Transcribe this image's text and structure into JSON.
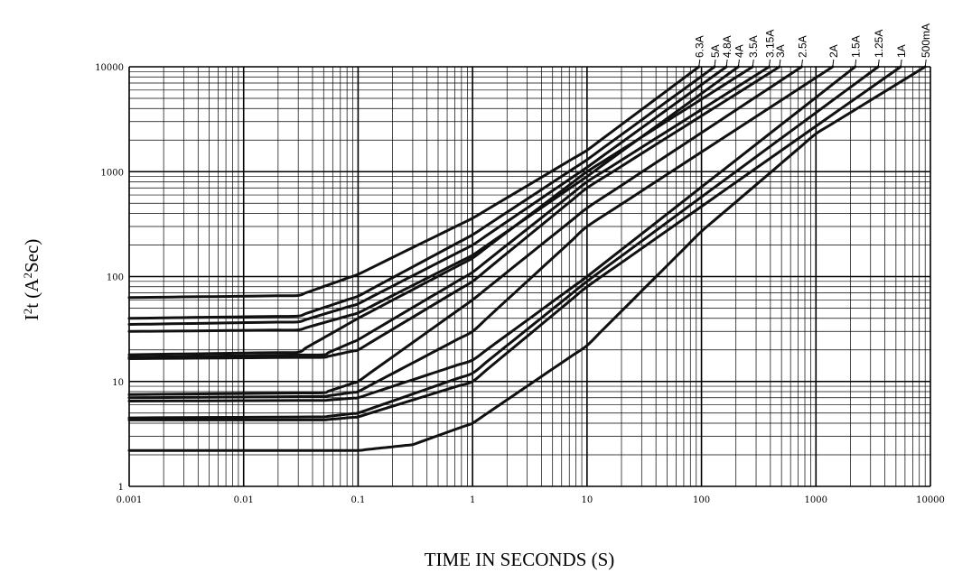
{
  "chart_data": {
    "type": "line",
    "x_scale": "log",
    "y_scale": "log",
    "xlim": [
      0.001,
      10000
    ],
    "ylim": [
      1,
      10000
    ],
    "grid": true,
    "xlabel": "TIME IN SECONDS  (S)",
    "ylabel_main": "I",
    "ylabel_sup1": "2",
    "ylabel_mid": "t (A",
    "ylabel_sup2": "2",
    "ylabel_end": "Sec)",
    "x_ticks": [
      {
        "value": 0.001,
        "label": "0.001"
      },
      {
        "value": 0.01,
        "label": "0.01"
      },
      {
        "value": 0.1,
        "label": "0.1"
      },
      {
        "value": 1,
        "label": "1"
      },
      {
        "value": 10,
        "label": "10"
      },
      {
        "value": 100,
        "label": "100"
      },
      {
        "value": 1000,
        "label": "1000"
      },
      {
        "value": 10000,
        "label": "10000"
      }
    ],
    "y_ticks": [
      {
        "value": 1,
        "label": "1"
      },
      {
        "value": 10,
        "label": "10"
      },
      {
        "value": 100,
        "label": "100"
      },
      {
        "value": 1000,
        "label": "1000"
      },
      {
        "value": 10000,
        "label": "10000"
      }
    ],
    "series": [
      {
        "name": "6.3A",
        "points": [
          [
            0.001,
            63
          ],
          [
            0.03,
            66
          ],
          [
            0.1,
            105
          ],
          [
            1,
            360
          ],
          [
            10,
            1600
          ],
          [
            95,
            10000
          ]
        ]
      },
      {
        "name": "5A",
        "points": [
          [
            0.001,
            40
          ],
          [
            0.03,
            42
          ],
          [
            0.1,
            65
          ],
          [
            1,
            250
          ],
          [
            10,
            1300
          ],
          [
            130,
            10000
          ]
        ]
      },
      {
        "name": "4.8A",
        "points": [
          [
            0.001,
            35
          ],
          [
            0.03,
            37
          ],
          [
            0.1,
            55
          ],
          [
            1,
            200
          ],
          [
            10,
            1100
          ],
          [
            165,
            10000
          ]
        ]
      },
      {
        "name": "4A",
        "points": [
          [
            0.001,
            30
          ],
          [
            0.03,
            31
          ],
          [
            0.1,
            45
          ],
          [
            1,
            160
          ],
          [
            10,
            900
          ],
          [
            210,
            10000
          ]
        ]
      },
      {
        "name": "3.5A",
        "points": [
          [
            0.001,
            18
          ],
          [
            0.03,
            19
          ],
          [
            0.1,
            40
          ],
          [
            1,
            150
          ],
          [
            10,
            1000
          ],
          [
            280,
            10000
          ]
        ]
      },
      {
        "name": "3.15A",
        "points": [
          [
            0.001,
            17
          ],
          [
            0.05,
            18
          ],
          [
            0.1,
            25
          ],
          [
            1,
            110
          ],
          [
            10,
            800
          ],
          [
            390,
            10000
          ]
        ]
      },
      {
        "name": "3A",
        "points": [
          [
            0.001,
            16.5
          ],
          [
            0.05,
            17
          ],
          [
            0.1,
            20
          ],
          [
            1,
            90
          ],
          [
            10,
            700
          ],
          [
            480,
            10000
          ]
        ]
      },
      {
        "name": "2.5A",
        "points": [
          [
            0.001,
            7.5
          ],
          [
            0.05,
            7.8
          ],
          [
            0.1,
            10
          ],
          [
            1,
            60
          ],
          [
            10,
            450
          ],
          [
            750,
            10000
          ]
        ]
      },
      {
        "name": "2A",
        "points": [
          [
            0.001,
            7
          ],
          [
            0.05,
            7.2
          ],
          [
            0.1,
            8
          ],
          [
            1,
            30
          ],
          [
            10,
            300
          ],
          [
            1400,
            10000
          ]
        ]
      },
      {
        "name": "1.5A",
        "points": [
          [
            0.001,
            6.5
          ],
          [
            0.05,
            6.6
          ],
          [
            0.1,
            7
          ],
          [
            1,
            16
          ],
          [
            10,
            100
          ],
          [
            2200,
            10000
          ]
        ]
      },
      {
        "name": "1.25A",
        "points": [
          [
            0.001,
            4.5
          ],
          [
            0.05,
            4.6
          ],
          [
            0.1,
            5
          ],
          [
            1,
            12
          ],
          [
            10,
            90
          ],
          [
            3500,
            10000
          ]
        ]
      },
      {
        "name": "1A",
        "points": [
          [
            0.001,
            4.3
          ],
          [
            0.05,
            4.3
          ],
          [
            0.1,
            4.6
          ],
          [
            1,
            10
          ],
          [
            10,
            80
          ],
          [
            5500,
            10000
          ]
        ]
      },
      {
        "name": "500mA",
        "points": [
          [
            0.001,
            2.2
          ],
          [
            0.1,
            2.2
          ],
          [
            0.3,
            2.5
          ],
          [
            1,
            4
          ],
          [
            10,
            22
          ],
          [
            100,
            270
          ],
          [
            1000,
            2300
          ],
          [
            9000,
            10000
          ]
        ]
      }
    ]
  }
}
